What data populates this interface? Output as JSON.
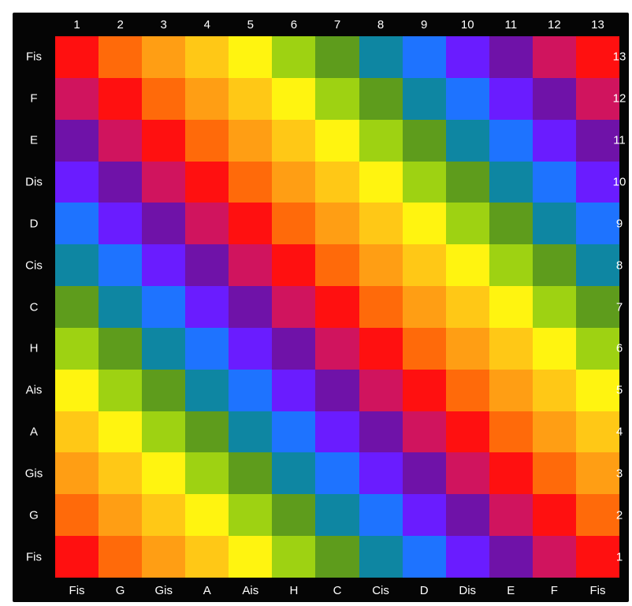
{
  "colors": {
    "1": "#ff1010",
    "2": "#ff6a0a",
    "3": "#ff9e14",
    "4": "#ffc816",
    "5": "#fff410",
    "6": "#9ed212",
    "7": "#5e9c1c",
    "8": "#0e86a2",
    "9": "#1e73ff",
    "10": "#6a1cff",
    "11": "#6f12a8",
    "12": "#d0145e",
    "13": "#ff1010"
  },
  "top_labels": [
    "1",
    "2",
    "3",
    "4",
    "5",
    "6",
    "7",
    "8",
    "9",
    "10",
    "11",
    "12",
    "13"
  ],
  "bottom_labels": [
    "Fis",
    "G",
    "Gis",
    "A",
    "Ais",
    "H",
    "C",
    "Cis",
    "D",
    "Dis",
    "E",
    "F",
    "Fis"
  ],
  "left_labels": [
    "Fis",
    "F",
    "E",
    "Dis",
    "D",
    "Cis",
    "C",
    "H",
    "Ais",
    "A",
    "Gis",
    "G",
    "Fis"
  ],
  "right_labels": [
    "13",
    "12",
    "11",
    "10",
    "9",
    "8",
    "7",
    "6",
    "5",
    "4",
    "3",
    "2",
    "1"
  ],
  "grid": [
    [
      1,
      2,
      3,
      4,
      5,
      6,
      7,
      8,
      9,
      10,
      11,
      12,
      13
    ],
    [
      12,
      1,
      2,
      3,
      4,
      5,
      6,
      7,
      8,
      9,
      10,
      11,
      12
    ],
    [
      11,
      12,
      1,
      2,
      3,
      4,
      5,
      6,
      7,
      8,
      9,
      10,
      11
    ],
    [
      10,
      11,
      12,
      1,
      2,
      3,
      4,
      5,
      6,
      7,
      8,
      9,
      10
    ],
    [
      9,
      10,
      11,
      12,
      1,
      2,
      3,
      4,
      5,
      6,
      7,
      8,
      9
    ],
    [
      8,
      9,
      10,
      11,
      12,
      1,
      2,
      3,
      4,
      5,
      6,
      7,
      8
    ],
    [
      7,
      8,
      9,
      10,
      11,
      12,
      1,
      2,
      3,
      4,
      5,
      6,
      7
    ],
    [
      6,
      7,
      8,
      9,
      10,
      11,
      12,
      1,
      2,
      3,
      4,
      5,
      6
    ],
    [
      5,
      6,
      7,
      8,
      9,
      10,
      11,
      12,
      1,
      2,
      3,
      4,
      5
    ],
    [
      4,
      5,
      6,
      7,
      8,
      9,
      10,
      11,
      12,
      1,
      2,
      3,
      4
    ],
    [
      3,
      4,
      5,
      6,
      7,
      8,
      9,
      10,
      11,
      12,
      1,
      2,
      3
    ],
    [
      2,
      3,
      4,
      5,
      6,
      7,
      8,
      9,
      10,
      11,
      12,
      1,
      2
    ],
    [
      1,
      2,
      3,
      4,
      5,
      6,
      7,
      8,
      9,
      10,
      11,
      12,
      1
    ]
  ]
}
